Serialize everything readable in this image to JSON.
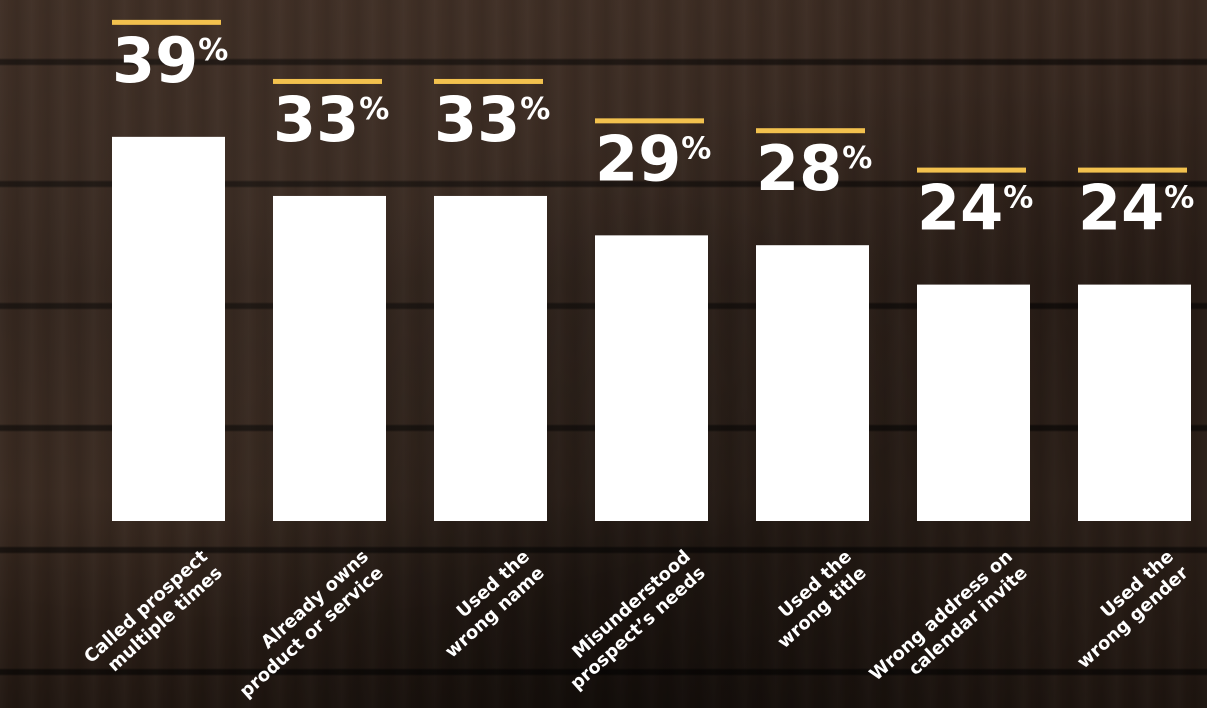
{
  "colors": {
    "bar": "#ffffff",
    "accent_line": "#f2c14e",
    "text": "#ffffff"
  },
  "chart_data": {
    "type": "bar",
    "categories": [
      [
        "Called prospect",
        "multiple times"
      ],
      [
        "Already owns",
        "product or service"
      ],
      [
        "Used the",
        "wrong name"
      ],
      [
        "Misunderstood",
        "prospect’s needs"
      ],
      [
        "Used the",
        "wrong title"
      ],
      [
        "Wrong address on",
        "calendar invite"
      ],
      [
        "Used the",
        "wrong gender"
      ]
    ],
    "values": [
      39,
      33,
      33,
      29,
      28,
      24,
      24
    ],
    "unit": "%",
    "title": "",
    "xlabel": "",
    "ylabel": "",
    "ylim": [
      0,
      39
    ],
    "grid": false,
    "legend": "none"
  }
}
